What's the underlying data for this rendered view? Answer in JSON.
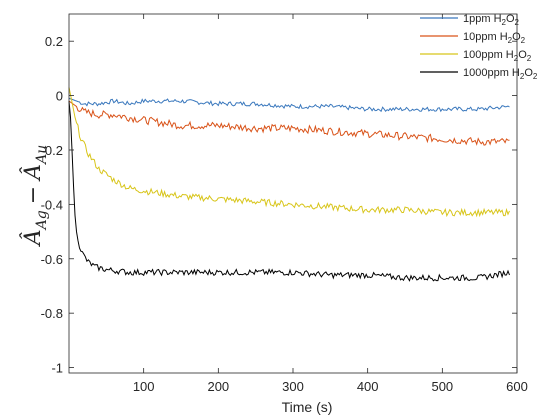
{
  "chart_data": {
    "type": "line",
    "xlabel": "Time (s)",
    "ylabel": {
      "main": "Â",
      "sub1": "Ag",
      "minus": "−",
      "sub2": "Au"
    },
    "xlim": [
      0,
      600
    ],
    "ylim": [
      -1.02,
      0.3
    ],
    "xticks": [
      100,
      200,
      300,
      400,
      500,
      600
    ],
    "yticks": [
      0.2,
      0,
      -0.2,
      -0.4,
      -0.6,
      -0.8,
      -1
    ],
    "ytick_labels": [
      "0.2",
      "0",
      "-0.2",
      "-0.4",
      "-0.6",
      "-0.8",
      "-1"
    ],
    "grid": false,
    "legend_position": "top-right",
    "series": [
      {
        "name": "1ppm H2O2",
        "legend": {
          "prefix": "1ppm H",
          "sub1": "2",
          "mid": "O",
          "sub2": "2"
        },
        "color": "#3a78bd",
        "x": [
          0,
          10,
          20,
          40,
          60,
          80,
          100,
          150,
          200,
          250,
          300,
          350,
          400,
          450,
          500,
          550,
          590
        ],
        "values": [
          -0.01,
          -0.02,
          -0.03,
          -0.03,
          -0.02,
          -0.03,
          -0.02,
          -0.02,
          -0.03,
          -0.03,
          -0.04,
          -0.04,
          -0.05,
          -0.05,
          -0.05,
          -0.05,
          -0.04
        ]
      },
      {
        "name": "10ppm H2O2",
        "legend": {
          "prefix": "10ppm H",
          "sub1": "2",
          "mid": "O",
          "sub2": "2"
        },
        "color": "#d95319",
        "x": [
          0,
          10,
          20,
          40,
          60,
          80,
          100,
          150,
          200,
          250,
          300,
          350,
          400,
          450,
          500,
          550,
          590
        ],
        "values": [
          -0.02,
          -0.04,
          -0.06,
          -0.07,
          -0.07,
          -0.08,
          -0.09,
          -0.11,
          -0.11,
          -0.12,
          -0.12,
          -0.13,
          -0.14,
          -0.15,
          -0.16,
          -0.17,
          -0.17
        ]
      },
      {
        "name": "100ppm H2O2",
        "legend": {
          "prefix": "100ppm H",
          "sub1": "2",
          "mid": "O",
          "sub2": "2"
        },
        "color": "#d8c51a",
        "x": [
          0,
          3,
          8,
          15,
          25,
          40,
          60,
          80,
          100,
          150,
          200,
          250,
          300,
          350,
          400,
          450,
          500,
          550,
          590
        ],
        "values": [
          0.03,
          -0.01,
          -0.08,
          -0.15,
          -0.21,
          -0.27,
          -0.31,
          -0.34,
          -0.35,
          -0.37,
          -0.38,
          -0.39,
          -0.4,
          -0.41,
          -0.42,
          -0.42,
          -0.43,
          -0.43,
          -0.43
        ]
      },
      {
        "name": "1000ppm H2O2",
        "legend": {
          "prefix": "1000ppm H",
          "sub1": "2",
          "mid": "O",
          "sub2": "2"
        },
        "color": "#000000",
        "x": [
          0,
          2,
          4,
          6,
          8,
          10,
          14,
          18,
          25,
          35,
          50,
          80,
          100,
          150,
          200,
          250,
          300,
          350,
          400,
          450,
          500,
          550,
          590
        ],
        "values": [
          -0.02,
          -0.08,
          -0.2,
          -0.33,
          -0.44,
          -0.5,
          -0.55,
          -0.58,
          -0.61,
          -0.63,
          -0.64,
          -0.65,
          -0.65,
          -0.65,
          -0.65,
          -0.65,
          -0.65,
          -0.66,
          -0.66,
          -0.67,
          -0.67,
          -0.67,
          -0.65
        ]
      }
    ]
  }
}
